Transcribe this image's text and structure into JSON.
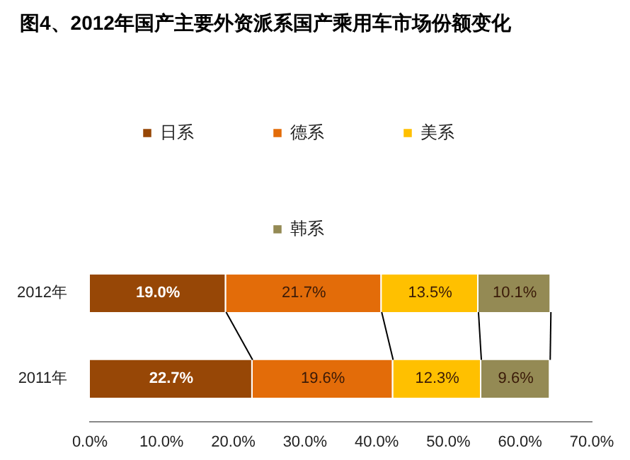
{
  "chart_data": {
    "type": "bar",
    "orientation": "horizontal",
    "stacked": true,
    "title": "图4、2012年国产主要外资派系国产乘用车市场份额变化",
    "categories": [
      "2012年",
      "2011年"
    ],
    "series": [
      {
        "name": "日系",
        "color": "#974706",
        "values": [
          19.0,
          22.7
        ],
        "value_labels": [
          "19.0%",
          "22.7%"
        ]
      },
      {
        "name": "德系",
        "color": "#e36c09",
        "values": [
          21.7,
          19.6
        ],
        "value_labels": [
          "21.7%",
          "19.6%"
        ]
      },
      {
        "name": "美系",
        "color": "#ffc000",
        "values": [
          13.5,
          12.3
        ],
        "value_labels": [
          "13.5%",
          "12.3%"
        ]
      },
      {
        "name": "韩系",
        "color": "#948a54",
        "values": [
          10.1,
          9.6
        ],
        "value_labels": [
          "10.1%",
          "9.6%"
        ]
      }
    ],
    "xlim": [
      0,
      70
    ],
    "xticks": [
      {
        "value": 0,
        "label": "0.0%"
      },
      {
        "value": 10,
        "label": "10.0%"
      },
      {
        "value": 20,
        "label": "20.0%"
      },
      {
        "value": 30,
        "label": "30.0%"
      },
      {
        "value": 40,
        "label": "40.0%"
      },
      {
        "value": 50,
        "label": "50.0%"
      },
      {
        "value": 60,
        "label": "60.0%"
      },
      {
        "value": 70,
        "label": "70.0%"
      }
    ],
    "grid": false,
    "legend": "top"
  }
}
